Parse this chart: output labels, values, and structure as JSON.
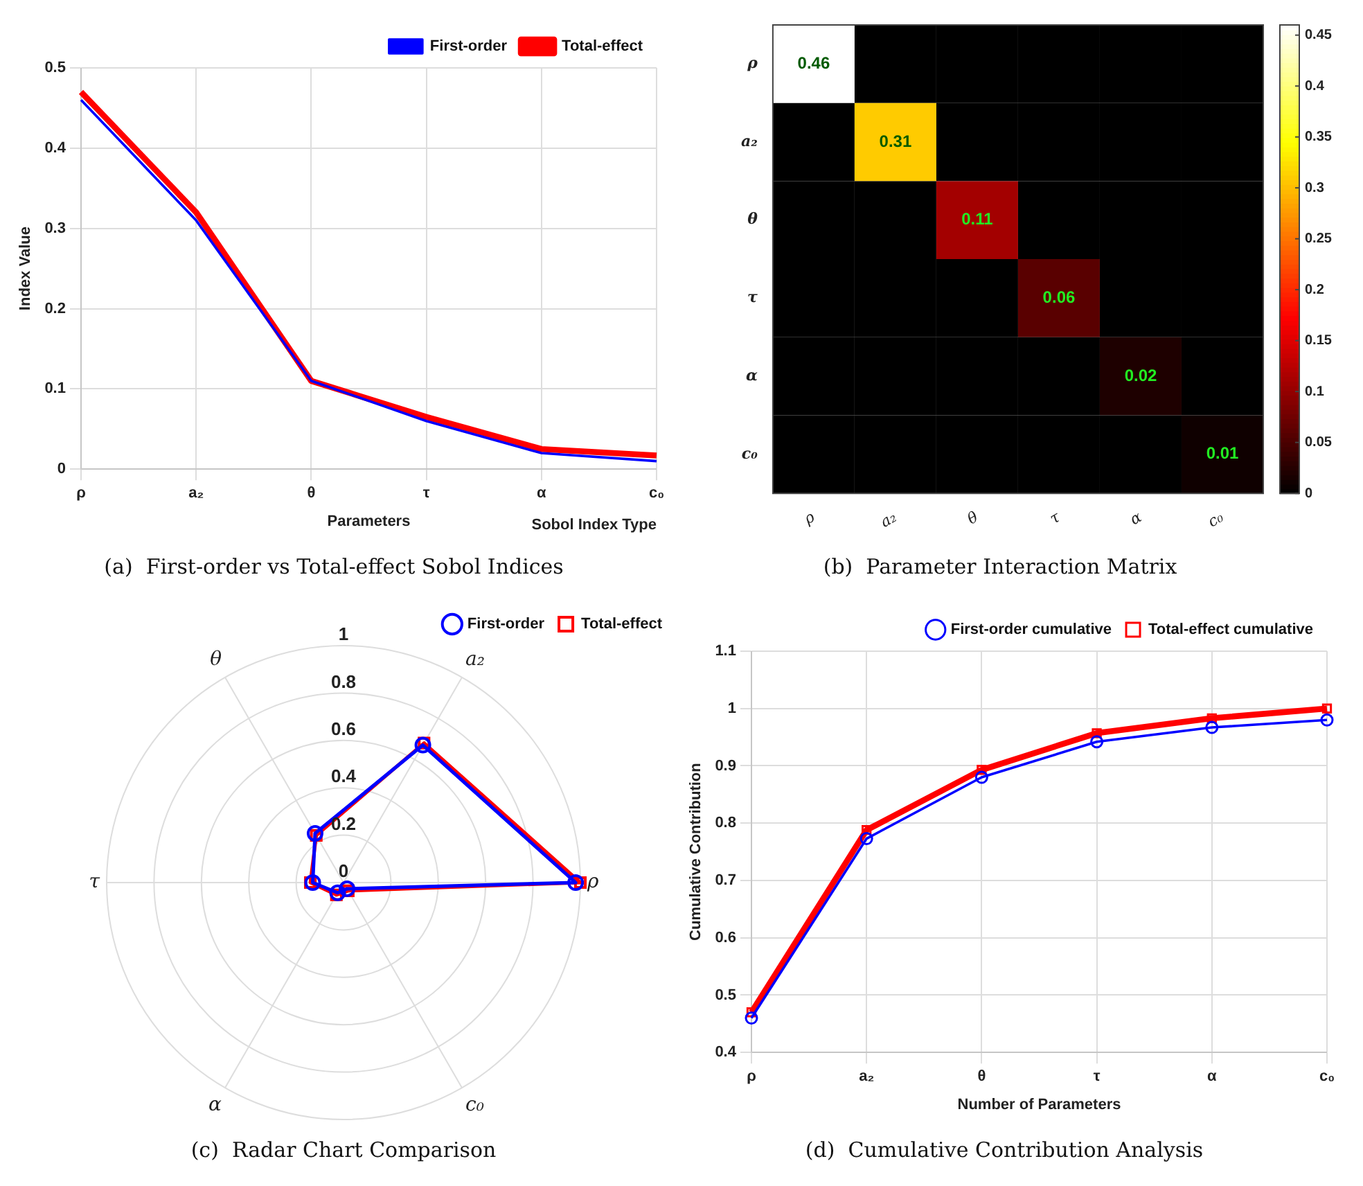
{
  "chart_data": [
    {
      "type": "line",
      "title": "(a)  First-order vs Total-effect Sobol Indices",
      "xlabel": "Parameters",
      "ylabel": "Index Value",
      "annotations": [
        "Sobol Index Type"
      ],
      "categories": [
        "ρ",
        "a₂",
        "θ",
        "τ",
        "α",
        "c₀"
      ],
      "series": [
        {
          "name": "First-order",
          "color": "#0000ff",
          "values": [
            0.46,
            0.31,
            0.11,
            0.06,
            0.02,
            0.01
          ]
        },
        {
          "name": "Total-effect",
          "color": "#ff0000",
          "values": [
            0.47,
            0.32,
            0.11,
            0.065,
            0.025,
            0.017
          ]
        }
      ],
      "ylim": [
        0,
        0.5
      ],
      "yticks": [
        0,
        0.1,
        0.2,
        0.3,
        0.4,
        0.5
      ],
      "grid": true,
      "legend": "top right",
      "marker": "none",
      "line_style": "solid"
    },
    {
      "type": "heatmap",
      "title": "(b)  Parameter Interaction Matrix",
      "categories": [
        "ρ",
        "a₂",
        "θ",
        "τ",
        "α",
        "c₀"
      ],
      "y_categories": [
        "ρ",
        "a₂",
        "θ",
        "τ",
        "α",
        "c₀"
      ],
      "cells": [
        [
          0.46,
          0,
          0,
          0,
          0,
          0
        ],
        [
          0,
          0.31,
          0,
          0,
          0,
          0
        ],
        [
          0,
          0,
          0.11,
          0,
          0,
          0
        ],
        [
          0,
          0,
          0,
          0.06,
          0,
          0
        ],
        [
          0,
          0,
          0,
          0,
          0.02,
          0
        ],
        [
          0,
          0,
          0,
          0,
          0,
          0.01
        ]
      ],
      "cell_labels": [
        [
          "0.46",
          null,
          null,
          null,
          null,
          null
        ],
        [
          null,
          "0.31",
          null,
          null,
          null,
          null
        ],
        [
          null,
          null,
          "0.11",
          null,
          null,
          null
        ],
        [
          null,
          null,
          null,
          "0.06",
          null,
          null
        ],
        [
          null,
          null,
          null,
          null,
          "0.02",
          null
        ],
        [
          null,
          null,
          null,
          null,
          null,
          "0.01"
        ]
      ],
      "clim": [
        0,
        0.46
      ],
      "cticks": [
        0,
        0.05,
        0.1,
        0.15,
        0.2,
        0.25,
        0.3,
        0.35,
        0.4,
        0.45
      ]
    },
    {
      "type": "radar",
      "title": "(c)  Radar Chart Comparison",
      "categories": [
        "a₂",
        "ρ",
        "c₀",
        "α",
        "τ",
        "θ"
      ],
      "series": [
        {
          "name": "First-order",
          "color": "#0000ff",
          "marker": "circle",
          "values": [
            0.67,
            0.98,
            0.03,
            0.05,
            0.13,
            0.24
          ]
        },
        {
          "name": "Total-effect",
          "color": "#ff0000",
          "marker": "square",
          "values": [
            0.68,
            1,
            0.04,
            0.06,
            0.14,
            0.23
          ]
        }
      ],
      "ylim": [
        0,
        1
      ],
      "yticks": [
        0,
        0.2,
        0.4,
        0.6,
        0.8,
        1
      ],
      "grid": true,
      "legend": "top right",
      "line_style": "solid"
    },
    {
      "type": "line",
      "title": "(d)  Cumulative Contribution Analysis",
      "xlabel": "Number of Parameters",
      "ylabel": "Cumulative Contribution",
      "categories": [
        "ρ",
        "a₂",
        "θ",
        "τ",
        "α",
        "c₀"
      ],
      "series": [
        {
          "name": "First-order cumulative",
          "color": "#0000ff",
          "marker": "circle",
          "values": [
            0.46,
            0.773,
            0.88,
            0.942,
            0.967,
            0.98
          ]
        },
        {
          "name": "Total-effect cumulative",
          "color": "#ff0000",
          "marker": "square",
          "values": [
            0.47,
            0.788,
            0.893,
            0.957,
            0.983,
            1.0
          ]
        }
      ],
      "ylim": [
        0.4,
        1.1
      ],
      "yticks": [
        0.4,
        0.5,
        0.6,
        0.7,
        0.8,
        0.9,
        1,
        1.1
      ],
      "grid": true,
      "legend": "top right",
      "line_style": "solid"
    }
  ]
}
